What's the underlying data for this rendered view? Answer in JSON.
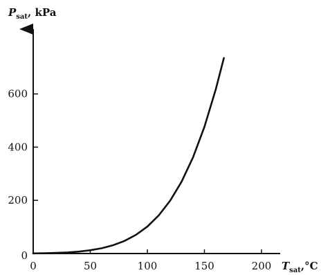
{
  "chart_data": {
    "type": "line",
    "title": "",
    "ylabel": {
      "var": "P",
      "sub": "sat",
      "unit": ", kPa"
    },
    "xlabel": {
      "var": "T",
      "sub": "sat",
      "unit": ",°C"
    },
    "xlim": [
      0,
      250
    ],
    "ylim": [
      0,
      800
    ],
    "x_ticks": [
      50,
      100,
      150,
      200
    ],
    "x_tick_labels": [
      "50",
      "100",
      "150",
      "200"
    ],
    "y_ticks": [
      200,
      400,
      600
    ],
    "y_tick_labels": [
      "200",
      "400",
      "600"
    ],
    "origin_labels": {
      "x": "0",
      "y": "0"
    },
    "grid": false,
    "series": [
      {
        "x": [
          0,
          10,
          20,
          30,
          40,
          50,
          60,
          70,
          80,
          90,
          100,
          110,
          120,
          130,
          140,
          150,
          160,
          167
        ],
        "y": [
          0.6,
          1.2,
          2.3,
          4.2,
          7.4,
          12.4,
          19.9,
          31.2,
          47.4,
          70.2,
          101.4,
          143.4,
          198.7,
          270.3,
          361.5,
          476.2,
          618.2,
          735
        ]
      }
    ]
  }
}
